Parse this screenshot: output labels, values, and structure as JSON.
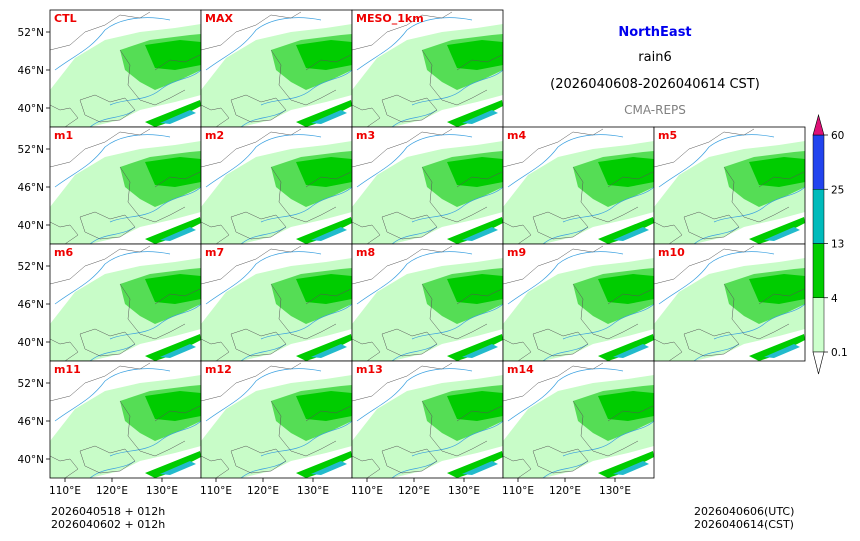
{
  "header": {
    "region": "NorthEast",
    "variable": "rain6",
    "period": "(2026040608-2026040614 CST)",
    "source": "CMA-REPS"
  },
  "footer": {
    "left_line1": "2026040518  +  012h",
    "left_line2": "2026040602  +  012h",
    "right_line1": "2026040606(UTC)",
    "right_line2": "2026040614(CST)"
  },
  "colors": {
    "title_blue": "#0000ee",
    "panel_label_red": "#ee0000",
    "source_gray": "#808080",
    "coast_line": "#3aa0e0",
    "border_line": "#555555"
  },
  "chart_data": {
    "type": "heatmap",
    "description": "6-hour accumulated precipitation ensemble map panels",
    "panels": [
      "CTL",
      "MAX",
      "MESO_1km",
      "m1",
      "m2",
      "m3",
      "m4",
      "m5",
      "m6",
      "m7",
      "m8",
      "m9",
      "m10",
      "m11",
      "m12",
      "m13",
      "m14"
    ],
    "lat_ticks": [
      "52°N",
      "46°N",
      "40°N"
    ],
    "lon_ticks": [
      "110°E",
      "120°E",
      "130°E"
    ],
    "colorbar": {
      "ticks": [
        "0.1",
        "4",
        "13",
        "25",
        "60"
      ],
      "colors": [
        "#ccffcc",
        "#00cc00",
        "#00bbbb",
        "#2244ee",
        "#dd1177"
      ]
    }
  }
}
